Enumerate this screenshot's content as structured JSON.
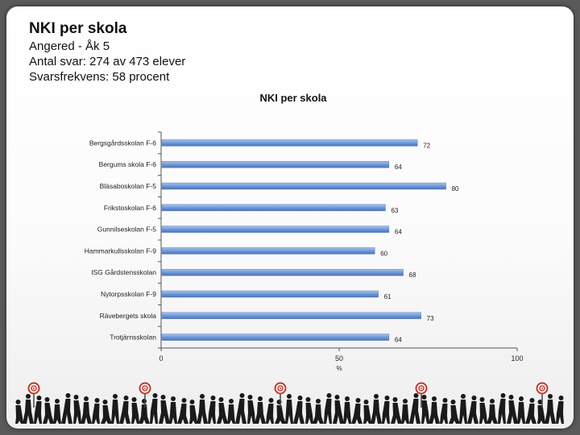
{
  "header": {
    "title": "NKI per skola",
    "line1": "Angered - Åk 5",
    "line2": "Antal svar: 274 av 473 elever",
    "line3": "Svarsfrekvens: 58 procent"
  },
  "chart_data": {
    "type": "bar",
    "orientation": "horizontal",
    "title": "NKI per skola",
    "xlabel": "%",
    "ylabel": "",
    "xlim": [
      0,
      100
    ],
    "xticks": [
      "0",
      "50",
      "100"
    ],
    "grid": false,
    "bar_color": "#6f98d8",
    "categories": [
      "Bergsgårdsskolan F-6",
      "Bergums skola F-6",
      "Bläsaboskolan F-5",
      "Frikstoskolan F-6",
      "Gunnilseskolan F-5",
      "Hammarkullsskolan F-9",
      "ISG Gårdstensskolan",
      "Nytorpsskolan F-9",
      "Rävebergets skola",
      "Trotjärnsskolan"
    ],
    "values": [
      72,
      64,
      80,
      63,
      64,
      60,
      68,
      61,
      73,
      64
    ]
  },
  "footer": {
    "figures_icon": "people-silhouettes-with-targets"
  }
}
